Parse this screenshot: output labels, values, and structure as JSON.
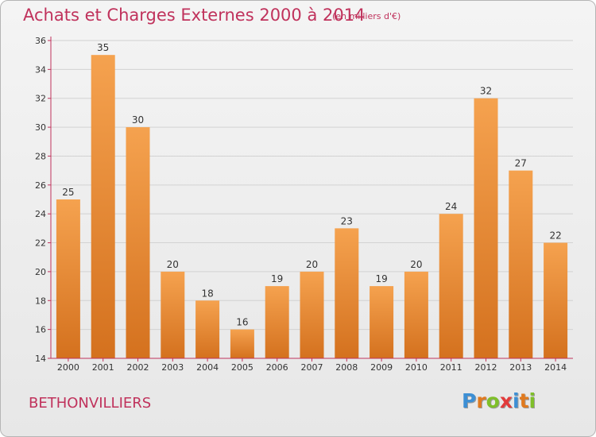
{
  "header": {
    "title": "Achats et Charges Externes 2000 à 2014",
    "subtitle": "(en milliers d'€)"
  },
  "footer": {
    "commune": "BETHONVILLIERS",
    "logo": {
      "letters": [
        "P",
        "r",
        "o",
        "x",
        "i",
        "t",
        "i"
      ],
      "colors": [
        "#3d8fd4",
        "#e07a1f",
        "#7fbf2a",
        "#e23b3b",
        "#3d8fd4",
        "#e07a1f",
        "#7fbf2a"
      ]
    }
  },
  "chart_data": {
    "type": "bar",
    "title": "Achats et Charges Externes 2000 à 2014",
    "subtitle": "(en milliers d'€)",
    "xlabel": "",
    "ylabel": "",
    "categories": [
      "2000",
      "2001",
      "2002",
      "2003",
      "2004",
      "2005",
      "2006",
      "2007",
      "2008",
      "2009",
      "2010",
      "2011",
      "2012",
      "2013",
      "2014"
    ],
    "values": [
      25,
      35,
      30,
      20,
      18,
      16,
      19,
      20,
      23,
      19,
      20,
      24,
      32,
      27,
      22
    ],
    "ylim": [
      14,
      36
    ],
    "yticks": [
      14,
      16,
      18,
      20,
      22,
      24,
      26,
      28,
      30,
      32,
      34,
      36
    ],
    "grid": true,
    "bar_color_top": "#f5a24f",
    "bar_color_bottom": "#d4711e",
    "axis_color": "#c0325c"
  }
}
